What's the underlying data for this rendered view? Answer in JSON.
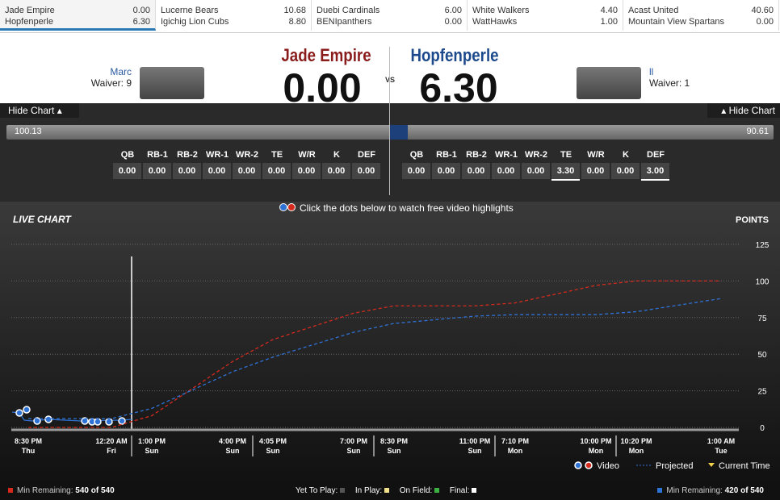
{
  "ticker": [
    {
      "teams": [
        {
          "name": "Jade Empire",
          "score": "0.00"
        },
        {
          "name": "Hopfenperle",
          "score": "6.30"
        }
      ]
    },
    {
      "teams": [
        {
          "name": "Lucerne Bears",
          "score": "10.68"
        },
        {
          "name": "Igichig Lion Cubs",
          "score": "8.80"
        }
      ]
    },
    {
      "teams": [
        {
          "name": "Duebi Cardinals",
          "score": "6.00"
        },
        {
          "name": "BENIpanthers",
          "score": "0.00"
        }
      ]
    },
    {
      "teams": [
        {
          "name": "White Walkers",
          "score": "4.40"
        },
        {
          "name": "WattHawks",
          "score": "1.00"
        }
      ]
    },
    {
      "teams": [
        {
          "name": "Acast United",
          "score": "40.60"
        },
        {
          "name": "Mountain View Spartans",
          "score": "0.00"
        }
      ]
    }
  ],
  "matchup": {
    "left": {
      "owner": "Marc",
      "waiver": "Waiver: 9",
      "name": "Jade Empire",
      "score": "0.00",
      "projection": "100.13",
      "hide": "Hide Chart",
      "slots": [
        "0.00",
        "0.00",
        "0.00",
        "0.00",
        "0.00",
        "0.00",
        "0.00",
        "0.00",
        "0.00"
      ]
    },
    "vs": "VS",
    "right": {
      "owner": "ll",
      "waiver": "Waiver: 1",
      "name": "Hopfenperle",
      "score": "6.30",
      "projection": "90.61",
      "hide": "Hide Chart",
      "slots": [
        "0.00",
        "0.00",
        "0.00",
        "0.00",
        "0.00",
        "3.30",
        "0.00",
        "0.00",
        "3.00"
      ]
    },
    "positions": [
      "QB",
      "RB-1",
      "RB-2",
      "WR-1",
      "WR-2",
      "TE",
      "W/R",
      "K",
      "DEF"
    ],
    "hint": "Click the dots below to watch free video highlights"
  },
  "chart_data": {
    "type": "line",
    "title": "LIVE CHART",
    "y_label": "POINTS",
    "x": [
      {
        "time": "8:30 PM",
        "day": "Thu"
      },
      {
        "time": "12:20 AM",
        "day": "Fri"
      },
      {
        "time": "1:00 PM",
        "day": "Sun"
      },
      {
        "time": "4:00 PM",
        "day": "Sun"
      },
      {
        "time": "4:05 PM",
        "day": "Sun"
      },
      {
        "time": "7:00 PM",
        "day": "Sun"
      },
      {
        "time": "8:30 PM",
        "day": "Sun"
      },
      {
        "time": "11:00 PM",
        "day": "Sun"
      },
      {
        "time": "7:10 PM",
        "day": "Mon"
      },
      {
        "time": "10:00 PM",
        "day": "Mon"
      },
      {
        "time": "10:20 PM",
        "day": "Mon"
      },
      {
        "time": "1:00 AM",
        "day": "Tue"
      }
    ],
    "series": [
      {
        "color": "#d62a1e",
        "values": [
          0,
          0,
          8,
          45,
          60,
          78,
          83,
          83,
          85,
          97,
          100,
          100
        ]
      },
      {
        "color": "#2f72d6",
        "values": [
          6,
          6,
          13,
          38,
          48,
          65,
          71,
          76,
          77,
          77,
          79,
          88
        ]
      }
    ],
    "ylim": [
      0,
      125
    ],
    "yticks": [
      0,
      25,
      50,
      75,
      100,
      125
    ],
    "grid": true,
    "legend": [
      "Video",
      "Projected",
      "Current Time"
    ]
  },
  "footer": {
    "left_label": "Min Remaining:",
    "left_value": "540 of 540",
    "yet": "Yet To Play:",
    "inplay": "In Play:",
    "onfield": "On Field:",
    "final": "Final:",
    "right_label": "Min Remaining:",
    "right_value": "420 of 540"
  }
}
